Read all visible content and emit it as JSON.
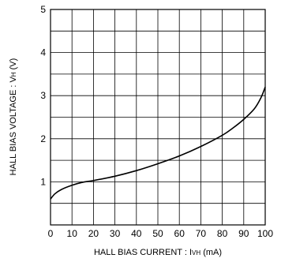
{
  "chart_data": {
    "type": "line",
    "xlabel_main": "HALL BIAS CURRENT : I",
    "xlabel_sub": "VH",
    "xlabel_unit": " (mA)",
    "ylabel_main": "HALL BIAS VOLTAGE : V",
    "ylabel_sub": "H",
    "ylabel_unit": " (V)",
    "xlim": [
      0,
      100
    ],
    "ylim": [
      0,
      5
    ],
    "x_ticks": [
      0,
      10,
      20,
      30,
      40,
      50,
      60,
      70,
      80,
      90,
      100
    ],
    "y_ticks": [
      1,
      2,
      3,
      4,
      5
    ],
    "grid_x_step": 10,
    "grid_y_step": 0.5,
    "grid": true,
    "series": [
      {
        "color": "#000000",
        "x": [
          0,
          2,
          5,
          10,
          15,
          20,
          30,
          40,
          50,
          60,
          70,
          80,
          85,
          90,
          95,
          98,
          100
        ],
        "y": [
          0.6,
          0.72,
          0.82,
          0.92,
          0.99,
          1.03,
          1.13,
          1.26,
          1.42,
          1.6,
          1.82,
          2.08,
          2.25,
          2.45,
          2.7,
          2.95,
          3.2
        ]
      }
    ]
  }
}
